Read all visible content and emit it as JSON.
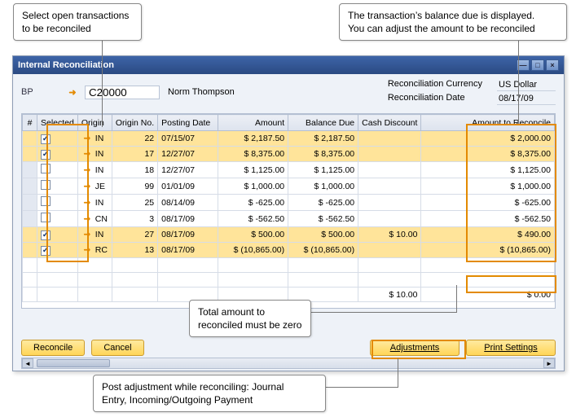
{
  "callouts": {
    "topLeft": "Select open transactions\nto be reconciled",
    "topRight": "The transaction’s  balance due is displayed.\nYou can adjust the amount to be reconciled",
    "mid": "Total amount to\nreconciled must be zero",
    "bottom": "Post adjustment while reconciling: Journal\nEntry, Incoming/Outgoing Payment"
  },
  "window": {
    "title": "Internal Reconciliation",
    "bpLabel": "BP",
    "bpCode": "C20000",
    "bpName": "Norm Thompson",
    "currencyLabel": "Reconciliation Currency",
    "currencyValue": "US Dollar",
    "dateLabel": "Reconciliation Date",
    "dateValue": "08/17/09"
  },
  "columns": [
    "#",
    "Selected",
    "Origin",
    "Origin No.",
    "Posting Date",
    "Amount",
    "Balance Due",
    "Cash Discount",
    "Amount to Reconcile"
  ],
  "rows": [
    {
      "sel": true,
      "origin": "IN",
      "no": "22",
      "date": "07/15/07",
      "amount": "$  2,187.50",
      "bal": "$  2,187.50",
      "disc": "",
      "atr": "$  2,000.00"
    },
    {
      "sel": true,
      "origin": "IN",
      "no": "17",
      "date": "12/27/07",
      "amount": "$  8,375.00",
      "bal": "$  8,375.00",
      "disc": "",
      "atr": "$  8,375.00"
    },
    {
      "sel": false,
      "origin": "IN",
      "no": "18",
      "date": "12/27/07",
      "amount": "$  1,125.00",
      "bal": "$  1,125.00",
      "disc": "",
      "atr": "$  1,125.00"
    },
    {
      "sel": false,
      "origin": "JE",
      "no": "99",
      "date": "01/01/09",
      "amount": "$  1,000.00",
      "bal": "$  1,000.00",
      "disc": "",
      "atr": "$  1,000.00"
    },
    {
      "sel": false,
      "origin": "IN",
      "no": "25",
      "date": "08/14/09",
      "amount": "$   -625.00",
      "bal": "$   -625.00",
      "disc": "",
      "atr": "$   -625.00"
    },
    {
      "sel": false,
      "origin": "CN",
      "no": "3",
      "date": "08/17/09",
      "amount": "$   -562.50",
      "bal": "$   -562.50",
      "disc": "",
      "atr": "$   -562.50"
    },
    {
      "sel": true,
      "origin": "IN",
      "no": "27",
      "date": "08/17/09",
      "amount": "$    500.00",
      "bal": "$    500.00",
      "disc": "$ 10.00",
      "atr": "$    490.00"
    },
    {
      "sel": true,
      "origin": "RC",
      "no": "13",
      "date": "08/17/09",
      "amount": "$ (10,865.00)",
      "bal": "$ (10,865.00)",
      "disc": "",
      "atr": "$ (10,865.00)"
    }
  ],
  "totals": {
    "disc": "$ 10.00",
    "atr": "$  0.00"
  },
  "buttons": {
    "reconcile": "Reconcile",
    "cancel": "Cancel",
    "adjustments": "Adjustments",
    "print": "Print Settings"
  },
  "colors": {
    "highlight": "#e38a00",
    "selectedRow": "#ffe49a",
    "titlebar": "#2b4a82"
  }
}
